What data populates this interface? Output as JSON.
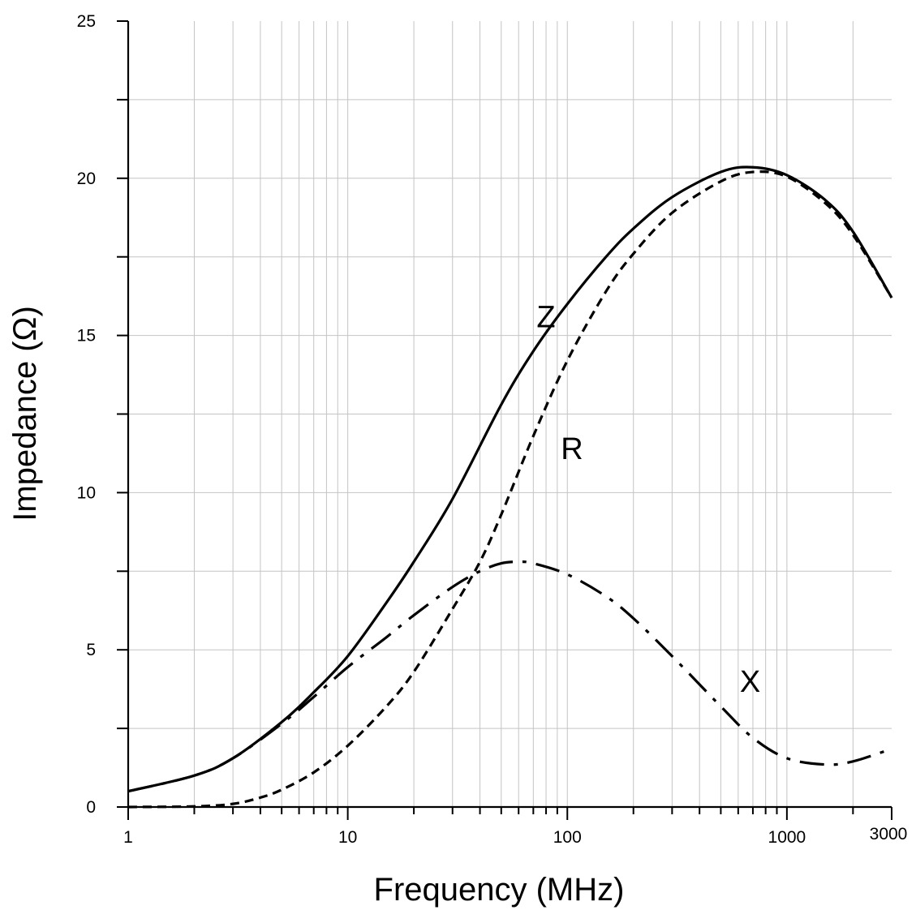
{
  "chart_data": {
    "type": "line",
    "title": "",
    "xlabel": "Frequency (MHz)",
    "ylabel": "Impedance (Ω)",
    "xscale": "log",
    "xlim": [
      1,
      3000
    ],
    "ylim": [
      0,
      25
    ],
    "grid": true,
    "legend": "none",
    "xticks": [
      {
        "value": 1,
        "label": "1"
      },
      {
        "value": 10,
        "label": "10"
      },
      {
        "value": 100,
        "label": "100"
      },
      {
        "value": 1000,
        "label": "1000"
      },
      {
        "value": 3000,
        "label": "3000"
      }
    ],
    "yticks": [
      {
        "value": 0,
        "label": "0"
      },
      {
        "value": 5,
        "label": "5"
      },
      {
        "value": 10,
        "label": "10"
      },
      {
        "value": 15,
        "label": "15"
      },
      {
        "value": 20,
        "label": "20"
      },
      {
        "value": 25,
        "label": "25"
      }
    ],
    "series": [
      {
        "name": "Z",
        "style": "solid",
        "label_at": [
          80,
          15.6
        ],
        "x": [
          1,
          2,
          3,
          5,
          7,
          10,
          15,
          20,
          30,
          50,
          70,
          100,
          150,
          200,
          300,
          500,
          700,
          1000,
          1500,
          2000,
          3000
        ],
        "y": [
          0.5,
          1.0,
          1.55,
          2.7,
          3.65,
          4.8,
          6.5,
          7.8,
          9.8,
          12.8,
          14.5,
          16.0,
          17.5,
          18.4,
          19.4,
          20.2,
          20.35,
          20.1,
          19.3,
          18.3,
          16.2
        ]
      },
      {
        "name": "R",
        "style": "dashed",
        "label_at": [
          105,
          11.4
        ],
        "x": [
          1,
          2,
          3,
          4,
          5,
          7,
          10,
          15,
          20,
          30,
          40,
          50,
          70,
          100,
          150,
          200,
          300,
          500,
          700,
          1000,
          1500,
          2000,
          3000
        ],
        "y": [
          0.0,
          0.02,
          0.1,
          0.3,
          0.55,
          1.1,
          1.95,
          3.2,
          4.3,
          6.3,
          7.8,
          9.3,
          11.8,
          14.2,
          16.4,
          17.6,
          18.9,
          19.9,
          20.2,
          20.05,
          19.2,
          18.2,
          16.2
        ]
      },
      {
        "name": "X",
        "style": "dashdot",
        "label_at": [
          680,
          4.0
        ],
        "x": [
          1,
          2,
          3,
          5,
          7,
          10,
          15,
          20,
          30,
          40,
          50,
          60,
          70,
          100,
          150,
          200,
          300,
          500,
          700,
          1000,
          1500,
          2000,
          3000
        ],
        "y": [
          0.5,
          1.0,
          1.55,
          2.65,
          3.5,
          4.45,
          5.4,
          6.1,
          7.0,
          7.5,
          7.75,
          7.8,
          7.75,
          7.4,
          6.7,
          6.0,
          4.8,
          3.2,
          2.2,
          1.55,
          1.35,
          1.45,
          1.85
        ]
      }
    ]
  }
}
